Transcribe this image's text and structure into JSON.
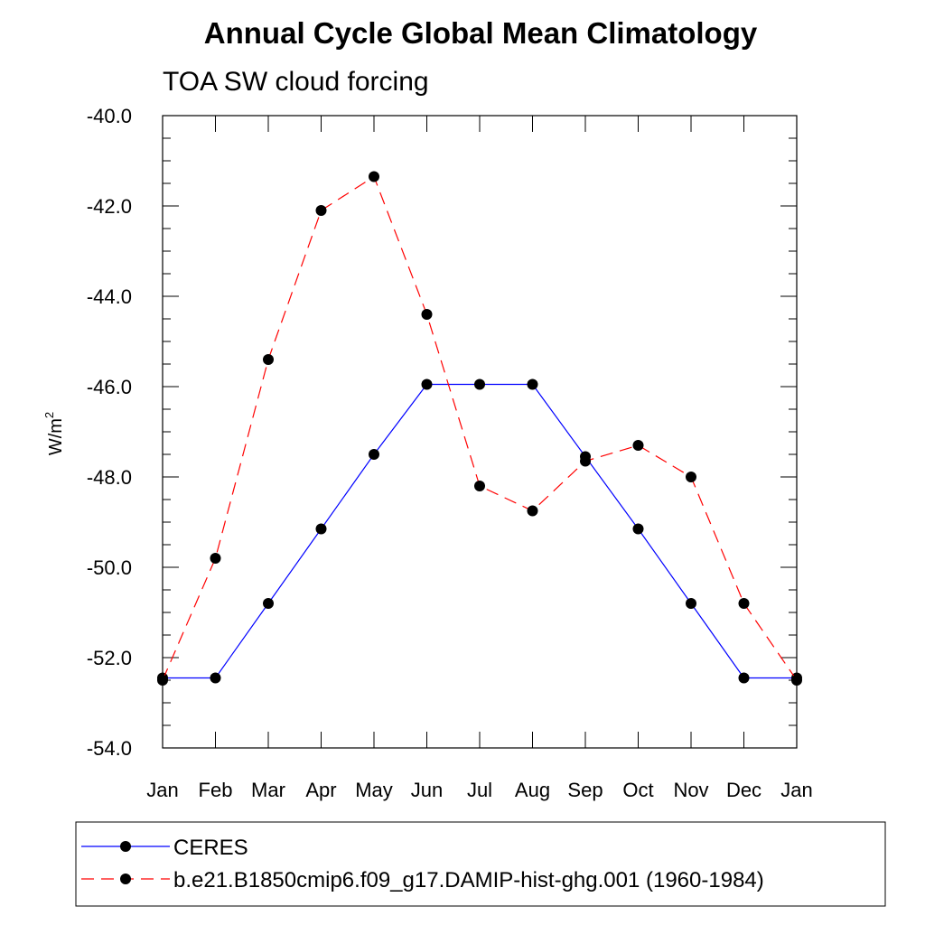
{
  "chart_data": {
    "type": "line",
    "title": "Annual Cycle Global Mean Climatology",
    "subtitle": "TOA SW cloud forcing",
    "ylabel": "W/m",
    "ylabel_sup": "2",
    "categories": [
      "Jan",
      "Feb",
      "Mar",
      "Apr",
      "May",
      "Jun",
      "Jul",
      "Aug",
      "Sep",
      "Oct",
      "Nov",
      "Dec",
      "Jan"
    ],
    "ylim": [
      -54.0,
      -40.0
    ],
    "yticks": [
      "-40.0",
      "-42.0",
      "-44.0",
      "-46.0",
      "-48.0",
      "-50.0",
      "-52.0",
      "-54.0"
    ],
    "series": [
      {
        "name": "CERES",
        "color": "#0000ff",
        "dash": "solid",
        "values": [
          -52.45,
          -52.45,
          -50.8,
          -49.15,
          -47.5,
          -45.95,
          -45.95,
          -45.95,
          -47.55,
          -49.15,
          -50.8,
          -52.45,
          -52.45
        ]
      },
      {
        "name": "b.e21.B1850cmip6.f09_g17.DAMIP-hist-ghg.001 (1960-1984)",
        "color": "#ff0000",
        "dash": "dashed",
        "values": [
          -52.5,
          -49.8,
          -45.4,
          -42.1,
          -41.35,
          -44.4,
          -48.2,
          -48.75,
          -47.65,
          -47.3,
          -48.0,
          -50.8,
          -52.5
        ]
      }
    ],
    "grid": false,
    "legend_position": "bottom"
  }
}
